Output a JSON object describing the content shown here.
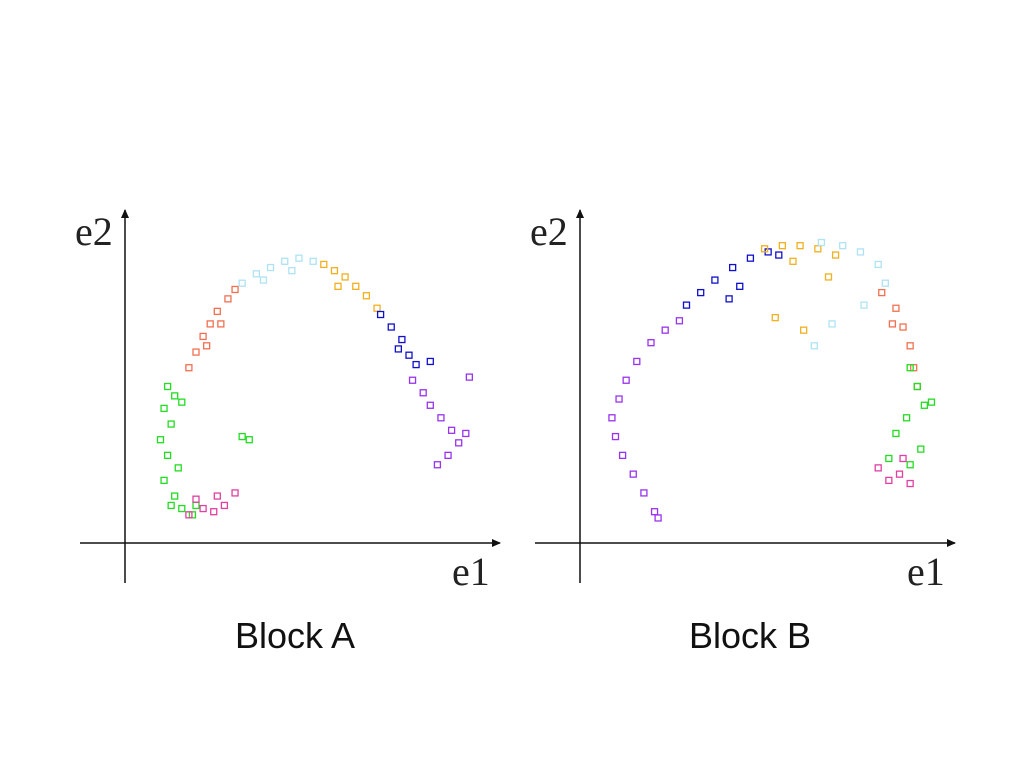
{
  "chart_data": [
    {
      "type": "scatter",
      "title": "Block A",
      "x_label": "e1",
      "y_label": "e2",
      "xlim": [
        0,
        100
      ],
      "ylim": [
        0,
        100
      ],
      "series": [
        {
          "color": "#22dd22",
          "x": [
            12,
            14,
            11,
            13,
            10,
            12,
            15,
            11,
            14,
            16,
            19,
            13,
            16,
            20,
            33,
            35
          ],
          "y": [
            50,
            47,
            43,
            38,
            33,
            28,
            24,
            20,
            15,
            11,
            9,
            12,
            45,
            12,
            34,
            33
          ]
        },
        {
          "color": "#e040a0",
          "x": [
            18,
            22,
            25,
            28,
            31,
            20,
            26
          ],
          "y": [
            9,
            11,
            10,
            12,
            16,
            14,
            15
          ]
        },
        {
          "color": "#f07050",
          "x": [
            18,
            20,
            22,
            24,
            26,
            29,
            31,
            23,
            27
          ],
          "y": [
            56,
            61,
            66,
            70,
            74,
            78,
            81,
            63,
            70
          ]
        },
        {
          "color": "#aee3f5",
          "x": [
            33,
            37,
            41,
            45,
            49,
            53,
            39,
            47
          ],
          "y": [
            83,
            86,
            88,
            90,
            91,
            90,
            84,
            87
          ]
        },
        {
          "color": "#f0b020",
          "x": [
            56,
            59,
            62,
            65,
            68,
            71,
            60
          ],
          "y": [
            89,
            87,
            85,
            82,
            79,
            75,
            82
          ]
        },
        {
          "color": "#1010cc",
          "x": [
            72,
            75,
            78,
            80,
            82,
            77,
            86
          ],
          "y": [
            73,
            69,
            65,
            60,
            57,
            62,
            58
          ]
        },
        {
          "color": "#9933ee",
          "x": [
            81,
            84,
            86,
            89,
            92,
            94,
            91,
            88,
            96,
            97
          ],
          "y": [
            52,
            48,
            44,
            40,
            36,
            32,
            28,
            25,
            35,
            53
          ]
        }
      ]
    },
    {
      "type": "scatter",
      "title": "Block B",
      "x_label": "e1",
      "y_label": "e2",
      "xlim": [
        0,
        100
      ],
      "ylim": [
        0,
        100
      ],
      "series": [
        {
          "color": "#9933ee",
          "x": [
            10,
            9,
            11,
            13,
            16,
            20,
            24,
            28,
            12,
            15,
            18,
            21,
            22
          ],
          "y": [
            34,
            40,
            46,
            52,
            58,
            64,
            68,
            71,
            28,
            22,
            16,
            10,
            8
          ]
        },
        {
          "color": "#1010cc",
          "x": [
            30,
            34,
            38,
            43,
            48,
            53,
            56,
            45,
            42
          ],
          "y": [
            76,
            80,
            84,
            88,
            91,
            93,
            92,
            82,
            78
          ]
        },
        {
          "color": "#f0b020",
          "x": [
            52,
            57,
            62,
            67,
            72,
            60,
            55,
            63,
            70
          ],
          "y": [
            94,
            95,
            95,
            94,
            92,
            90,
            72,
            68,
            85
          ]
        },
        {
          "color": "#aee3f5",
          "x": [
            68,
            74,
            79,
            84,
            86,
            71,
            66,
            80
          ],
          "y": [
            96,
            95,
            93,
            89,
            83,
            70,
            63,
            76
          ]
        },
        {
          "color": "#f07050",
          "x": [
            85,
            89,
            91,
            93,
            94,
            95,
            88
          ],
          "y": [
            80,
            75,
            69,
            63,
            56,
            50,
            70
          ]
        },
        {
          "color": "#22dd22",
          "x": [
            93,
            95,
            97,
            92,
            89,
            96,
            93,
            99,
            87
          ],
          "y": [
            56,
            50,
            44,
            40,
            35,
            30,
            25,
            45,
            27
          ]
        },
        {
          "color": "#e040a0",
          "x": [
            84,
            87,
            90,
            93,
            91
          ],
          "y": [
            24,
            20,
            22,
            19,
            27
          ]
        }
      ]
    }
  ]
}
